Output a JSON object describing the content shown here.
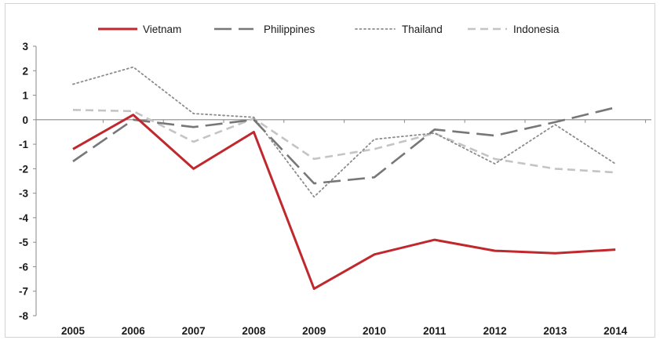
{
  "chart_data": {
    "type": "line",
    "title": "",
    "xlabel": "",
    "ylabel": "",
    "categories": [
      "2005",
      "2006",
      "2007",
      "2008",
      "2009",
      "2010",
      "2011",
      "2012",
      "2013",
      "2014"
    ],
    "ylim": [
      -8,
      3
    ],
    "yticks": [
      3,
      2,
      1,
      0,
      -1,
      -2,
      -3,
      -4,
      -5,
      -6,
      -7,
      -8
    ],
    "grid": false,
    "legend_position": "top",
    "series": [
      {
        "name": "Vietnam",
        "color": "#c0282d",
        "style": "solid",
        "values": [
          -1.2,
          0.2,
          -2.0,
          -0.5,
          -6.9,
          -5.5,
          -4.9,
          -5.35,
          -5.45,
          -5.3
        ]
      },
      {
        "name": "Philippines",
        "color": "#777777",
        "style": "longdash",
        "values": [
          -1.7,
          0.0,
          -0.3,
          0.0,
          -2.6,
          -2.35,
          -0.4,
          -0.65,
          -0.1,
          0.5
        ]
      },
      {
        "name": "Thailand",
        "color": "#8c8c8c",
        "style": "dotted",
        "values": [
          1.45,
          2.15,
          0.25,
          0.1,
          -3.15,
          -0.8,
          -0.55,
          -1.8,
          -0.2,
          -1.8
        ]
      },
      {
        "name": "Indonesia",
        "color": "#c4c4c4",
        "style": "dashed",
        "values": [
          0.4,
          0.35,
          -0.9,
          0.05,
          -1.6,
          -1.2,
          -0.55,
          -1.6,
          -2.0,
          -2.15
        ]
      }
    ]
  }
}
